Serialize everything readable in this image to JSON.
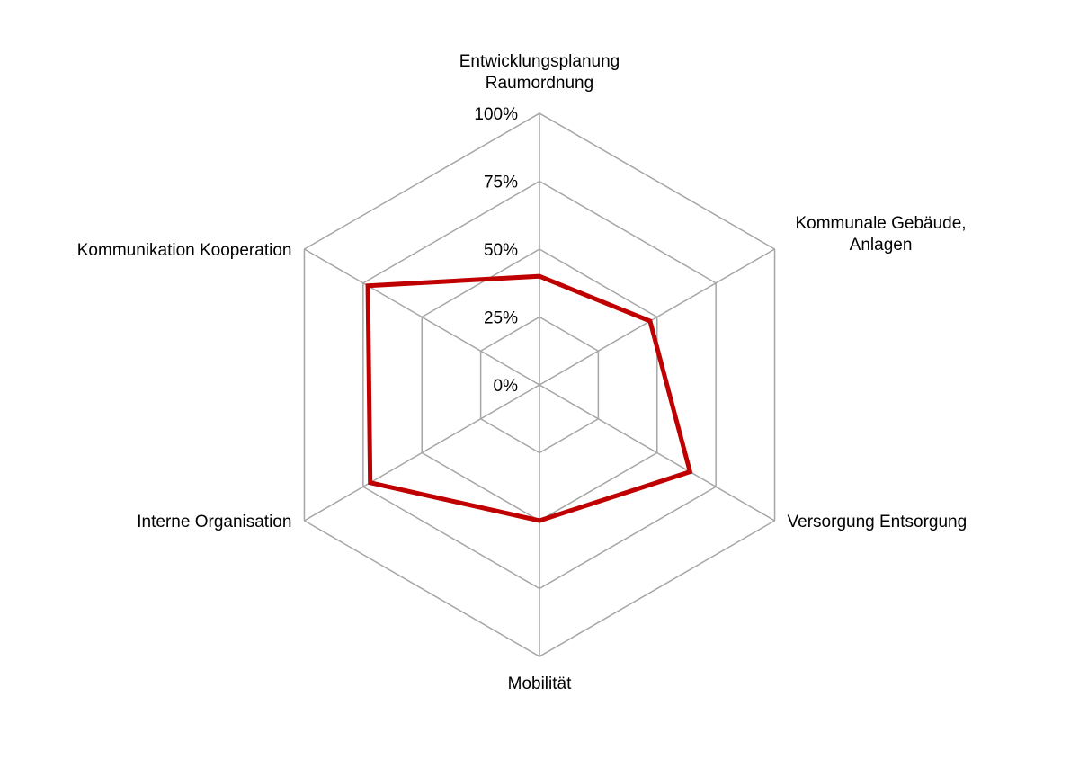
{
  "chart_data": {
    "type": "radar",
    "categories": [
      [
        "Entwicklungsplanung",
        "Raumordnung"
      ],
      [
        "Kommunale Gebäude,",
        "Anlagen"
      ],
      [
        "Versorgung Entsorgung"
      ],
      [
        "Mobilität"
      ],
      [
        "Interne Organisation"
      ],
      [
        "Kommunikation Kooperation"
      ]
    ],
    "series": [
      {
        "values": [
          40,
          47,
          64,
          50,
          72,
          73
        ]
      }
    ],
    "rlim": [
      0,
      100
    ],
    "ticks": [
      "0%",
      "25%",
      "50%",
      "75%",
      "100%"
    ],
    "grid": true,
    "legend": "none",
    "colors": {
      "series": "#c00000",
      "grid": "#a6a6a6"
    }
  }
}
